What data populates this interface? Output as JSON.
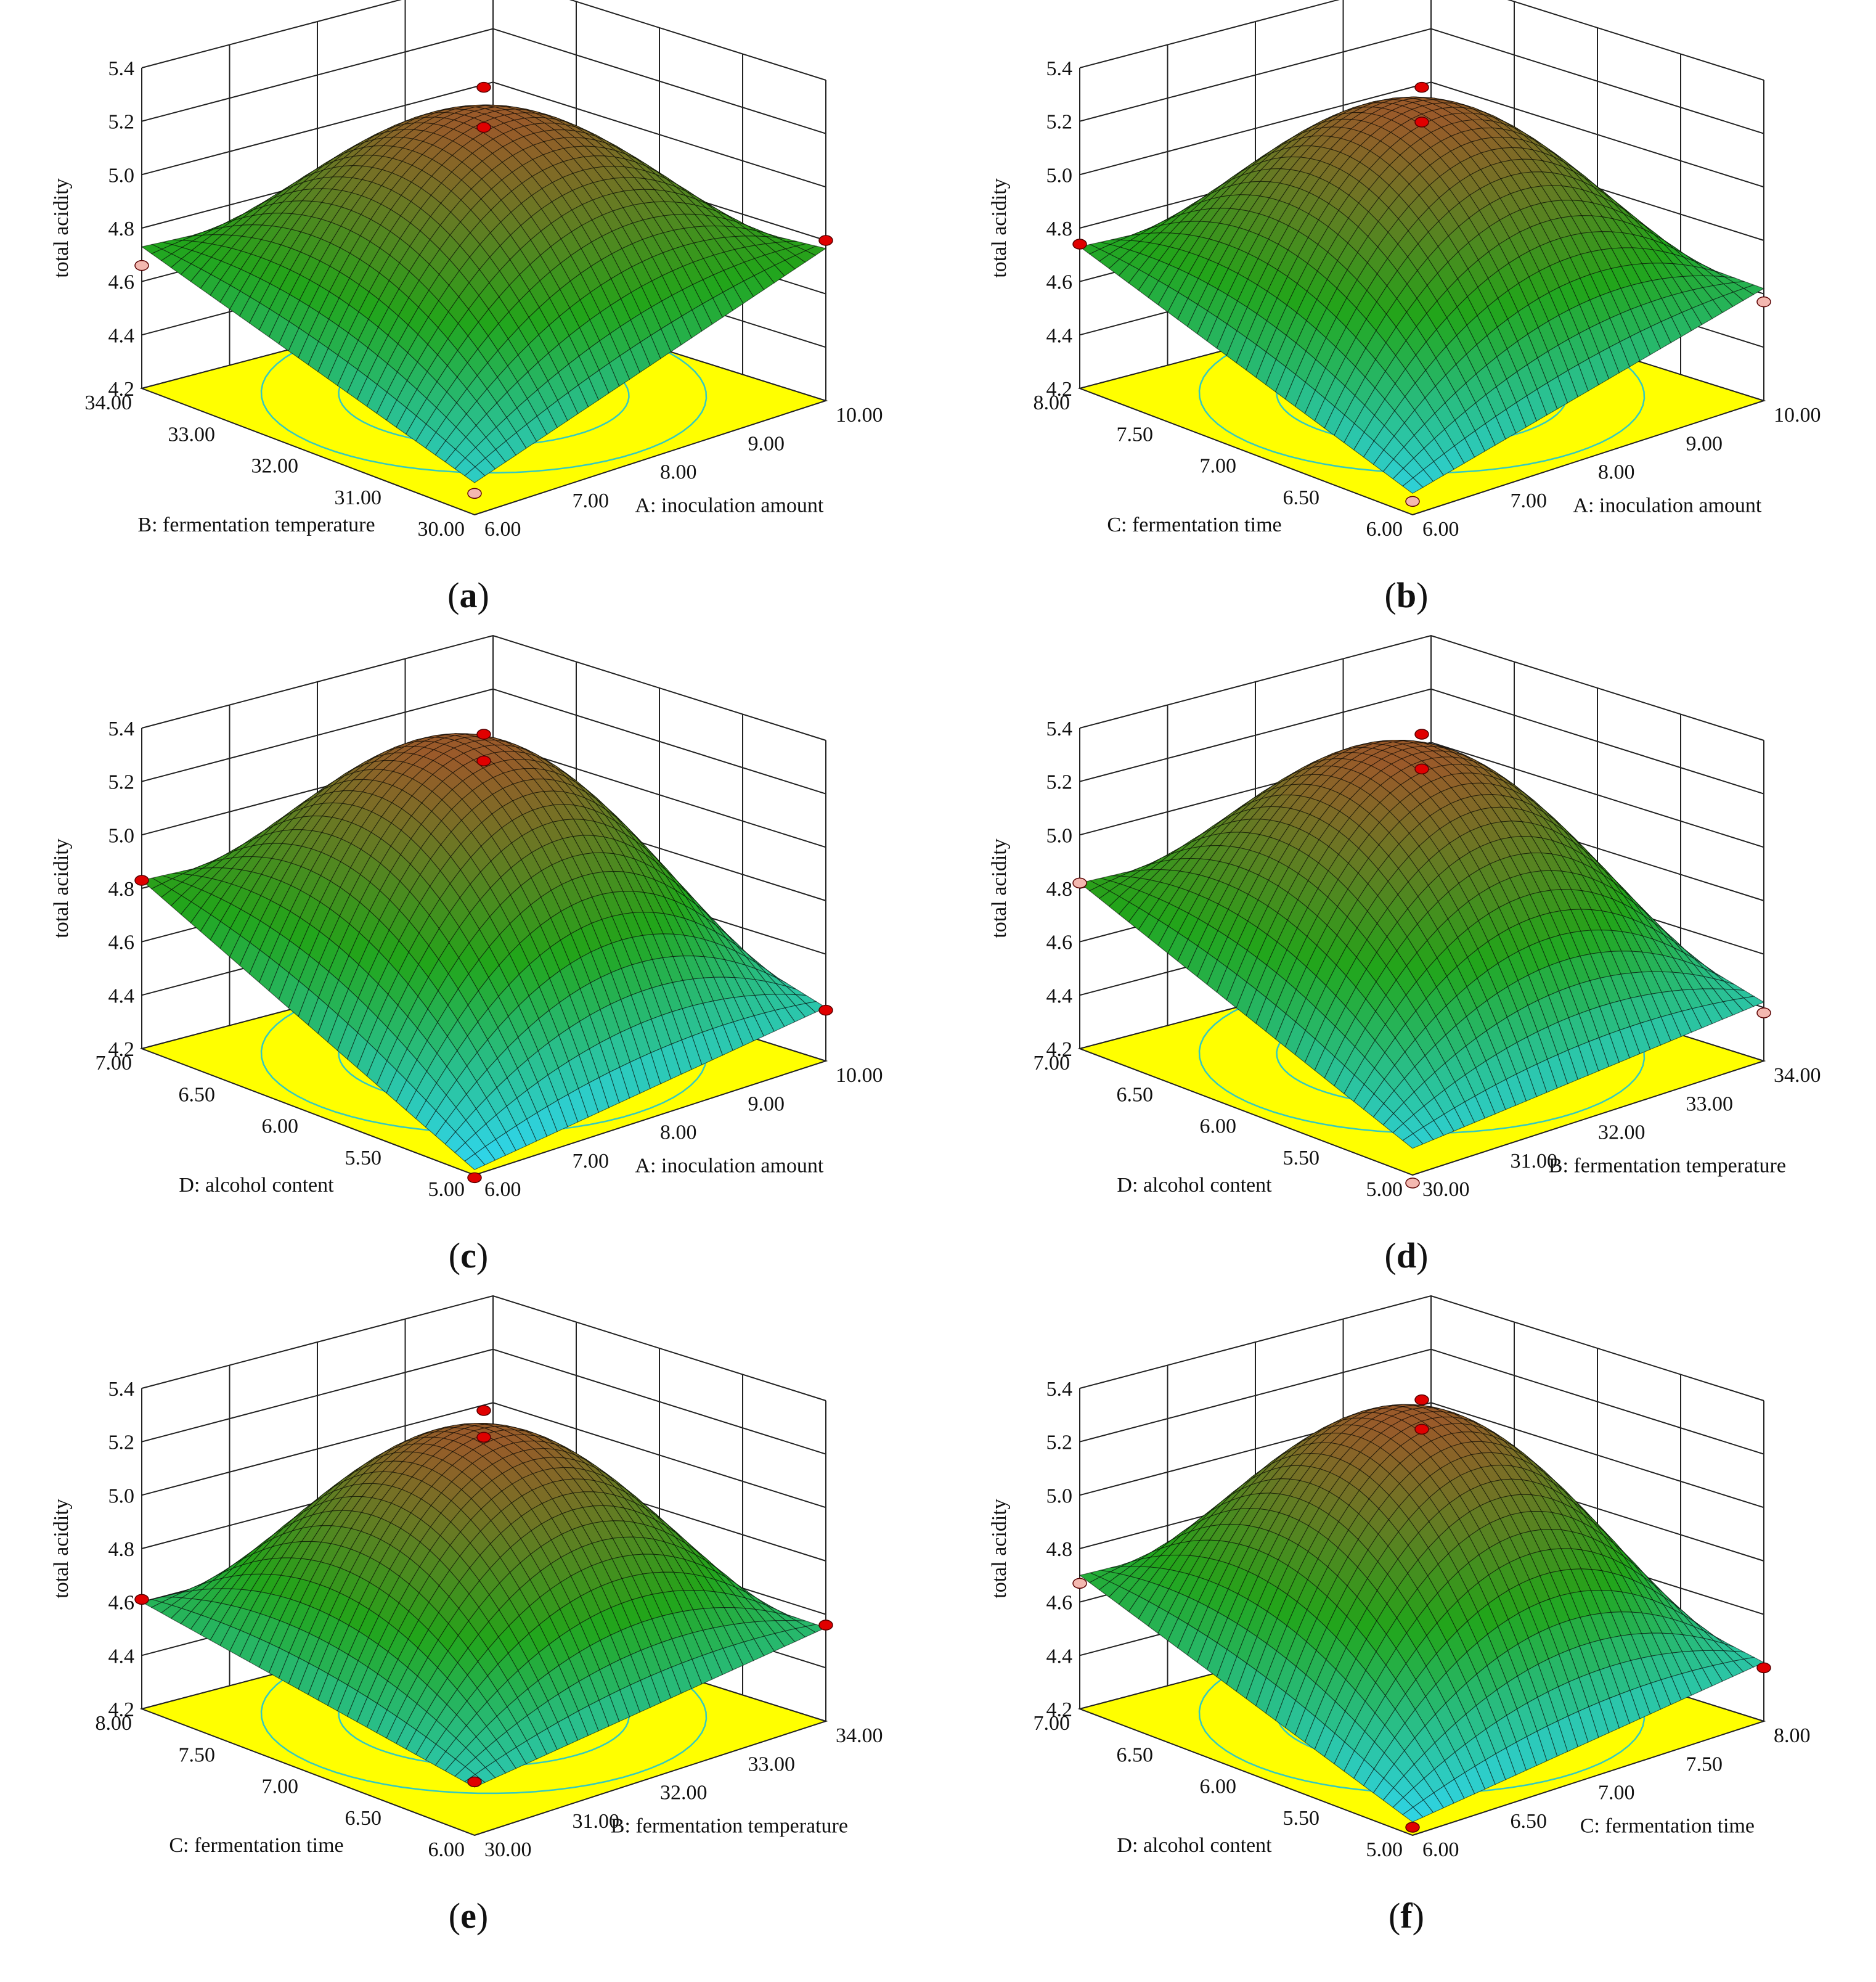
{
  "figure": {
    "colors": {
      "floor": "#ffff00",
      "contour": "#33c9c0",
      "surface_low": "#2fd4e6",
      "surface_mid": "#22a51a",
      "surface_high": "#9a5a2a",
      "grid": "#222222",
      "design_point_above": "#e00000",
      "design_point_below": "#f4b8b0"
    }
  },
  "chart_data": [
    {
      "type": "surface3d",
      "caption": "(a)",
      "caption_letter": "a",
      "zlabel": "total acidity",
      "zlim": [
        4.2,
        5.4
      ],
      "z_ticks": [
        "4.2",
        "4.4",
        "4.6",
        "4.8",
        "5.0",
        "5.2",
        "5.4"
      ],
      "x_axis": {
        "label": "A: inoculation amount",
        "range": [
          6.0,
          10.0
        ],
        "ticks": [
          "6.00",
          "7.00",
          "8.00",
          "9.00",
          "10.00"
        ]
      },
      "y_axis": {
        "label": "B: fermentation temperature",
        "range": [
          30.0,
          34.0
        ],
        "ticks": [
          "30.00",
          "31.00",
          "32.00",
          "33.00",
          "34.00"
        ]
      },
      "surface": {
        "peak": 5.22,
        "corner_front": 4.32,
        "corner_right": 4.77,
        "corner_left": 4.73,
        "corner_back": 4.6
      },
      "design_points": [
        {
          "x": 8.0,
          "y": 32.0,
          "z": 5.35,
          "above": true
        },
        {
          "x": 8.0,
          "y": 32.0,
          "z": 5.2,
          "above": true
        },
        {
          "x": 10.0,
          "y": 30.0,
          "z": 4.8,
          "above": true
        },
        {
          "x": 6.0,
          "y": 34.0,
          "z": 4.66,
          "above": false
        },
        {
          "x": 6.0,
          "y": 30.0,
          "z": 4.28,
          "above": false
        }
      ]
    },
    {
      "type": "surface3d",
      "caption": "(b)",
      "caption_letter": "b",
      "zlabel": "total acidity",
      "zlim": [
        4.2,
        5.4
      ],
      "z_ticks": [
        "4.2",
        "4.4",
        "4.6",
        "4.8",
        "5.0",
        "5.2",
        "5.4"
      ],
      "x_axis": {
        "label": "A: inoculation amount",
        "range": [
          6.0,
          10.0
        ],
        "ticks": [
          "6.00",
          "7.00",
          "8.00",
          "9.00",
          "10.00"
        ]
      },
      "y_axis": {
        "label": "C: fermentation time",
        "range": [
          6.0,
          8.0
        ],
        "ticks": [
          "6.00",
          "6.50",
          "7.00",
          "7.50",
          "8.00"
        ]
      },
      "surface": {
        "peak": 5.25,
        "corner_front": 4.28,
        "corner_right": 4.62,
        "corner_left": 4.73,
        "corner_back": 4.6
      },
      "design_points": [
        {
          "x": 8.0,
          "y": 7.0,
          "z": 5.35,
          "above": true
        },
        {
          "x": 8.0,
          "y": 7.0,
          "z": 5.22,
          "above": true
        },
        {
          "x": 6.0,
          "y": 8.0,
          "z": 4.74,
          "above": true
        },
        {
          "x": 10.0,
          "y": 6.0,
          "z": 4.57,
          "above": false
        },
        {
          "x": 6.0,
          "y": 6.0,
          "z": 4.25,
          "above": false
        }
      ]
    },
    {
      "type": "surface3d",
      "caption": "(c)",
      "caption_letter": "c",
      "zlabel": "total acidity",
      "zlim": [
        4.2,
        5.4
      ],
      "z_ticks": [
        "4.2",
        "4.4",
        "4.6",
        "4.8",
        "5.0",
        "5.2",
        "5.4"
      ],
      "x_axis": {
        "label": "A: inoculation amount",
        "range": [
          6.0,
          10.0
        ],
        "ticks": [
          "6.00",
          "7.00",
          "8.00",
          "9.00",
          "10.00"
        ]
      },
      "y_axis": {
        "label": "D: alcohol content",
        "range": [
          5.0,
          7.0
        ],
        "ticks": [
          "5.00",
          "5.50",
          "6.00",
          "6.50",
          "7.00"
        ]
      },
      "surface": {
        "peak": 5.32,
        "corner_front": 4.22,
        "corner_right": 4.4,
        "corner_left": 4.83,
        "corner_back": 4.7
      },
      "design_points": [
        {
          "x": 8.0,
          "y": 6.0,
          "z": 5.4,
          "above": true
        },
        {
          "x": 8.0,
          "y": 6.0,
          "z": 5.3,
          "above": true
        },
        {
          "x": 6.0,
          "y": 7.0,
          "z": 4.83,
          "above": true
        },
        {
          "x": 10.0,
          "y": 5.0,
          "z": 4.39,
          "above": true
        },
        {
          "x": 6.0,
          "y": 5.0,
          "z": 4.19,
          "above": true
        }
      ]
    },
    {
      "type": "surface3d",
      "caption": "(d)",
      "caption_letter": "d",
      "zlabel": "total acidity",
      "zlim": [
        4.2,
        5.4
      ],
      "z_ticks": [
        "4.2",
        "4.4",
        "4.6",
        "4.8",
        "5.0",
        "5.2",
        "5.4"
      ],
      "x_axis": {
        "label": "B: fermentation temperature",
        "range": [
          30.0,
          34.0
        ],
        "ticks": [
          "30.00",
          "31.00",
          "32.00",
          "33.00",
          "34.00"
        ]
      },
      "y_axis": {
        "label": "D: alcohol content",
        "range": [
          5.0,
          7.0
        ],
        "ticks": [
          "5.00",
          "5.50",
          "6.00",
          "6.50",
          "7.00"
        ]
      },
      "surface": {
        "peak": 5.3,
        "corner_front": 4.3,
        "corner_right": 4.42,
        "corner_left": 4.82,
        "corner_back": 4.7
      },
      "design_points": [
        {
          "x": 32.0,
          "y": 6.0,
          "z": 5.4,
          "above": true
        },
        {
          "x": 32.0,
          "y": 6.0,
          "z": 5.27,
          "above": true
        },
        {
          "x": 30.0,
          "y": 7.0,
          "z": 4.82,
          "above": false
        },
        {
          "x": 34.0,
          "y": 5.0,
          "z": 4.38,
          "above": false
        },
        {
          "x": 30.0,
          "y": 5.0,
          "z": 4.17,
          "above": false
        }
      ]
    },
    {
      "type": "surface3d",
      "caption": "(e)",
      "caption_letter": "e",
      "zlabel": "total acidity",
      "zlim": [
        4.2,
        5.4
      ],
      "z_ticks": [
        "4.2",
        "4.4",
        "4.6",
        "4.8",
        "5.0",
        "5.2",
        "5.4"
      ],
      "x_axis": {
        "label": "B: fermentation temperature",
        "range": [
          30.0,
          34.0
        ],
        "ticks": [
          "30.00",
          "31.00",
          "32.00",
          "33.00",
          "34.00"
        ]
      },
      "y_axis": {
        "label": "C: fermentation time",
        "range": [
          6.0,
          8.0
        ],
        "ticks": [
          "6.00",
          "6.50",
          "7.00",
          "7.50",
          "8.00"
        ]
      },
      "surface": {
        "peak": 5.25,
        "corner_front": 4.38,
        "corner_right": 4.55,
        "corner_left": 4.6,
        "corner_back": 4.5
      },
      "design_points": [
        {
          "x": 32.0,
          "y": 7.0,
          "z": 5.34,
          "above": true
        },
        {
          "x": 32.0,
          "y": 7.0,
          "z": 5.24,
          "above": true
        },
        {
          "x": 30.0,
          "y": 8.0,
          "z": 4.61,
          "above": true
        },
        {
          "x": 34.0,
          "y": 6.0,
          "z": 4.56,
          "above": true
        },
        {
          "x": 30.0,
          "y": 6.0,
          "z": 4.4,
          "above": true
        }
      ]
    },
    {
      "type": "surface3d",
      "caption": "(f)",
      "caption_letter": "f",
      "zlabel": "total acidity",
      "zlim": [
        4.2,
        5.4
      ],
      "z_ticks": [
        "4.2",
        "4.4",
        "4.6",
        "4.8",
        "5.0",
        "5.2",
        "5.4"
      ],
      "x_axis": {
        "label": "C: fermentation time",
        "range": [
          6.0,
          8.0
        ],
        "ticks": [
          "6.00",
          "6.50",
          "7.00",
          "7.50",
          "8.00"
        ]
      },
      "y_axis": {
        "label": "D: alcohol content",
        "range": [
          5.0,
          7.0
        ],
        "ticks": [
          "5.00",
          "5.50",
          "6.00",
          "6.50",
          "7.00"
        ]
      },
      "surface": {
        "peak": 5.3,
        "corner_front": 4.25,
        "corner_right": 4.42,
        "corner_left": 4.7,
        "corner_back": 4.6
      },
      "design_points": [
        {
          "x": 7.0,
          "y": 6.0,
          "z": 5.38,
          "above": true
        },
        {
          "x": 7.0,
          "y": 6.0,
          "z": 5.27,
          "above": true
        },
        {
          "x": 6.0,
          "y": 7.0,
          "z": 4.67,
          "above": false
        },
        {
          "x": 8.0,
          "y": 5.0,
          "z": 4.4,
          "above": true
        },
        {
          "x": 6.0,
          "y": 5.0,
          "z": 4.23,
          "above": true
        }
      ]
    }
  ]
}
